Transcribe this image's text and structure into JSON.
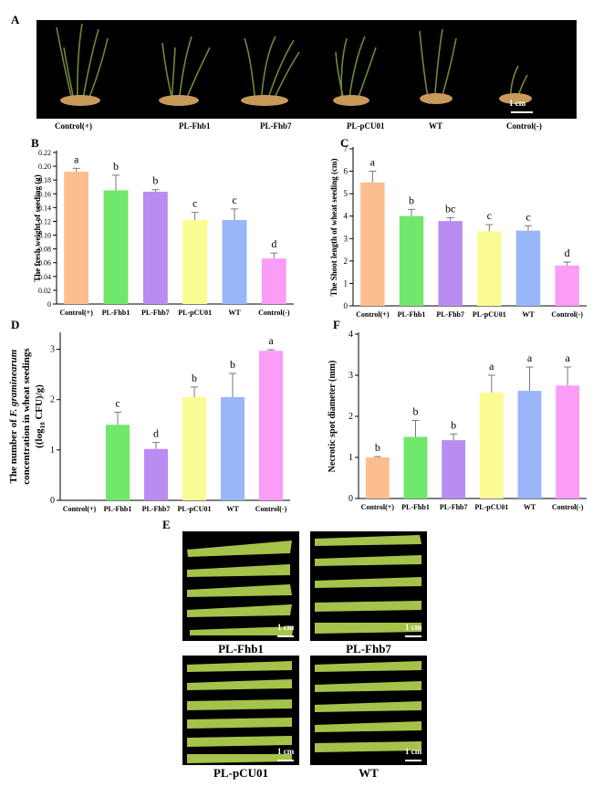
{
  "panels": {
    "A": {
      "letter": "A",
      "labels": [
        "Control(+)",
        "PL-Fhb1",
        "PL-Fhb7",
        "PL-pCU01",
        "WT",
        "Control(-)"
      ],
      "scale": "1 cm"
    },
    "E": {
      "letter": "E",
      "captions": [
        "PL-Fhb1",
        "PL-Fhb7",
        "PL-pCU01",
        "WT"
      ],
      "scale": "1 cm"
    }
  },
  "colors": {
    "orange": "#FDBE8F",
    "green": "#6FE86C",
    "purple": "#B98CF2",
    "yellow": "#FBFB94",
    "blue": "#98B6F8",
    "pink": "#FB9CF6"
  },
  "chart_data": [
    {
      "panel": "B",
      "type": "bar",
      "ylabel": "The fresh weight of seeding (g)",
      "categories": [
        "Control(+)",
        "PL-Fhb1",
        "PL-Fhb7",
        "PL-pCU01",
        "WT",
        "Control(-)"
      ],
      "values": [
        0.192,
        0.165,
        0.163,
        0.122,
        0.122,
        0.066
      ],
      "errors": [
        0.005,
        0.022,
        0.003,
        0.011,
        0.016,
        0.008
      ],
      "letters": [
        "a",
        "b",
        "b",
        "c",
        "c",
        "d"
      ],
      "ylim": [
        0,
        0.22
      ],
      "yticks": [
        0,
        0.02,
        0.04,
        0.06,
        0.08,
        0.1,
        0.12,
        0.14,
        0.16,
        0.18,
        0.2,
        0.22
      ],
      "yticklabels": [
        "0",
        "0.02",
        "0.04",
        "0.06",
        "0.08",
        "0.10",
        "0.12",
        "0.14",
        "0.16",
        "0.18",
        "0.20",
        "0.22"
      ]
    },
    {
      "panel": "C",
      "type": "bar",
      "ylabel": "The Shoot length of wheat seeding (cm)",
      "categories": [
        "Control(+)",
        "PL-Fhb1",
        "PL-Fhb7",
        "PL-pCU01",
        "WT",
        "Control(-)"
      ],
      "values": [
        5.5,
        4.0,
        3.78,
        3.32,
        3.35,
        1.8
      ],
      "errors": [
        0.5,
        0.3,
        0.15,
        0.3,
        0.22,
        0.15
      ],
      "letters": [
        "a",
        "b",
        "bc",
        "c",
        "c",
        "d"
      ],
      "ylim": [
        0,
        7
      ],
      "yticks": [
        0,
        1,
        2,
        3,
        4,
        5,
        6,
        7
      ],
      "yticklabels": [
        "0",
        "1",
        "2",
        "3",
        "4",
        "5",
        "6",
        "7"
      ]
    },
    {
      "panel": "D",
      "type": "bar",
      "ylabel_line1": "The number of ",
      "ylabel_italic": "F. graminearum",
      "ylabel_line2": "concentration in wheat seedings",
      "ylabel_line3a": "(log",
      "ylabel_sub": "10",
      "ylabel_line3b": " CFU)/g)",
      "ylabel_line3pre": "(",
      "categories": [
        "Control(+)",
        "PL-Fhb1",
        "PL-Fhb7",
        "PL-pCU01",
        "WT",
        "Control(-)"
      ],
      "values": [
        0,
        1.5,
        1.02,
        2.05,
        2.05,
        2.97
      ],
      "errors": [
        0,
        0.25,
        0.13,
        0.2,
        0.47,
        0.02
      ],
      "letters": [
        "",
        "c",
        "d",
        "b",
        "b",
        "a"
      ],
      "ylim": [
        0,
        3.3
      ],
      "yticks": [
        0,
        1,
        2,
        3
      ],
      "yticklabels": [
        "0",
        "1",
        "2",
        "3"
      ]
    },
    {
      "panel": "F",
      "type": "bar",
      "ylabel": "Necrotic spot diameter (mm)",
      "categories": [
        "Control(+)",
        "PL-Fhb1",
        "PL-Fhb7",
        "PL-pCU01",
        "WT",
        "Control(-)"
      ],
      "values": [
        1.0,
        1.5,
        1.42,
        2.58,
        2.62,
        2.75
      ],
      "errors": [
        0.02,
        0.4,
        0.15,
        0.42,
        0.58,
        0.45
      ],
      "letters": [
        "b",
        "b",
        "b",
        "a",
        "a",
        "a"
      ],
      "ylim": [
        0,
        4
      ],
      "yticks": [
        0,
        1,
        2,
        3,
        4
      ],
      "yticklabels": [
        "0",
        "1",
        "2",
        "3",
        "4"
      ]
    }
  ]
}
